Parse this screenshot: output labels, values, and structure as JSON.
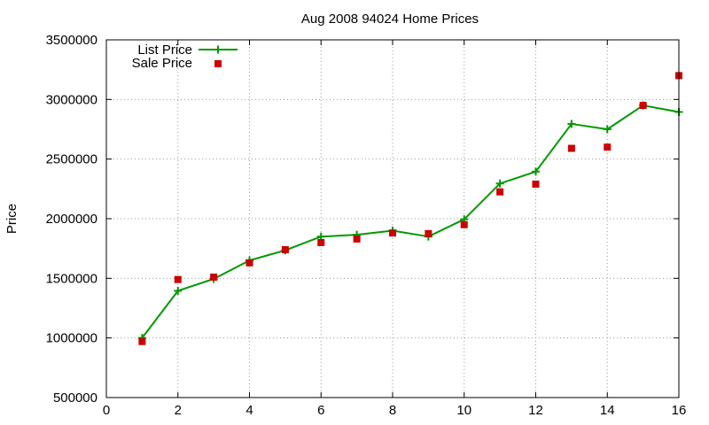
{
  "chart_data": {
    "type": "line",
    "title": "Aug 2008 94024 Home Prices",
    "xlabel": "",
    "ylabel": "Price",
    "xlim": [
      0,
      16
    ],
    "ylim": [
      500000,
      3500000
    ],
    "x_ticks": [
      0,
      2,
      4,
      6,
      8,
      10,
      12,
      14,
      16
    ],
    "y_ticks": [
      500000,
      1000000,
      1500000,
      2000000,
      2500000,
      3000000,
      3500000
    ],
    "x_tick_labels": [
      "0",
      "2",
      "4",
      "6",
      "8",
      "10",
      "12",
      "14",
      "16"
    ],
    "y_tick_labels": [
      "500000",
      "1000000",
      "1500000",
      "2000000",
      "2500000",
      "3000000",
      "3500000"
    ],
    "grid": true,
    "legend_position": "top-left",
    "series": [
      {
        "name": "List Price",
        "style": "line-with-plus-markers",
        "color": "#009900",
        "x": [
          1,
          2,
          3,
          4,
          5,
          6,
          7,
          8,
          9,
          10,
          11,
          12,
          13,
          14,
          15,
          16
        ],
        "y": [
          1000000,
          1395000,
          1495000,
          1650000,
          1735000,
          1850000,
          1865000,
          1900000,
          1850000,
          1995000,
          2295000,
          2395000,
          2795000,
          2750000,
          2950000,
          2895000
        ]
      },
      {
        "name": "Sale Price",
        "style": "square-markers",
        "color": "#cc0000",
        "x": [
          1,
          2,
          3,
          4,
          5,
          6,
          7,
          8,
          9,
          10,
          11,
          12,
          13,
          14,
          15,
          16
        ],
        "y": [
          970000,
          1490000,
          1510000,
          1630000,
          1740000,
          1800000,
          1830000,
          1880000,
          1875000,
          1950000,
          2225000,
          2290000,
          2590000,
          2600000,
          2950000,
          3200000
        ]
      }
    ]
  }
}
